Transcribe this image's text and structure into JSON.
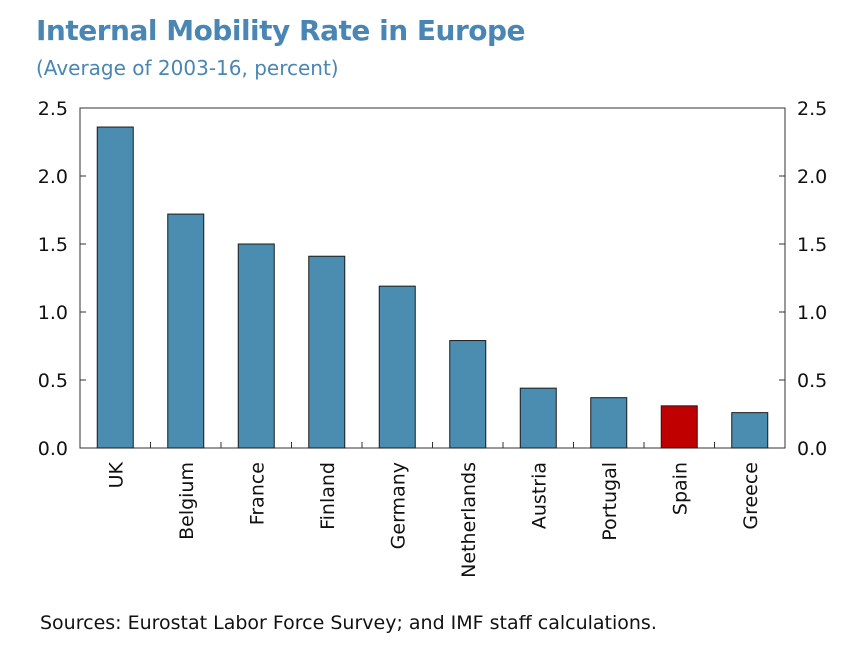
{
  "title": "Internal Mobility Rate in Europe",
  "subtitle": "(Average of 2003-16, percent)",
  "source": "Sources: Eurostat Labor Force Survey; and IMF staff calculations.",
  "colors": {
    "bar": "#4a8db0",
    "highlight": "#c00000",
    "title": "#4a86b4"
  },
  "chart_data": {
    "type": "bar",
    "categories": [
      "UK",
      "Belgium",
      "France",
      "Finland",
      "Germany",
      "Netherlands",
      "Austria",
      "Portugal",
      "Spain",
      "Greece"
    ],
    "values": [
      2.36,
      1.72,
      1.5,
      1.41,
      1.19,
      0.79,
      0.44,
      0.37,
      0.31,
      0.26
    ],
    "highlight": "Spain",
    "ylim": [
      0,
      2.5
    ],
    "yticks": [
      "0.0",
      "0.5",
      "1.0",
      "1.5",
      "2.0",
      "2.5"
    ],
    "dual_axis": true,
    "grid": false,
    "xlabel": "",
    "ylabel": ""
  }
}
